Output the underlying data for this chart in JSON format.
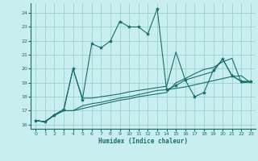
{
  "xlabel": "Humidex (Indice chaleur)",
  "bg_color": "#c8eef0",
  "grid_color": "#90cccc",
  "line_color": "#1a6e6a",
  "xlim": [
    -0.5,
    23.5
  ],
  "ylim": [
    15.7,
    24.7
  ],
  "yticks": [
    16,
    17,
    18,
    19,
    20,
    21,
    22,
    23,
    24
  ],
  "xticks": [
    0,
    1,
    2,
    3,
    4,
    5,
    6,
    7,
    8,
    9,
    10,
    11,
    12,
    13,
    14,
    15,
    16,
    17,
    18,
    19,
    20,
    21,
    22,
    23
  ],
  "line1_x": [
    0,
    1,
    2,
    3,
    4,
    5,
    6,
    7,
    8,
    9,
    10,
    11,
    12,
    13,
    14,
    15,
    16,
    17,
    18,
    19,
    20,
    21,
    22,
    23
  ],
  "line1_y": [
    16.3,
    16.2,
    16.7,
    17.1,
    20.0,
    17.8,
    21.8,
    21.5,
    22.0,
    23.4,
    23.0,
    23.0,
    22.5,
    24.3,
    18.5,
    18.8,
    19.2,
    18.0,
    18.3,
    19.9,
    20.7,
    19.5,
    19.1,
    19.1
  ],
  "line2_x": [
    0,
    1,
    2,
    3,
    4,
    5,
    6,
    7,
    8,
    9,
    10,
    11,
    12,
    13,
    14,
    15,
    16,
    17,
    18,
    19,
    20,
    21,
    22,
    23
  ],
  "line2_y": [
    16.3,
    16.2,
    16.7,
    17.0,
    17.0,
    17.35,
    17.5,
    17.6,
    17.75,
    17.9,
    18.0,
    18.15,
    18.3,
    18.45,
    18.5,
    18.6,
    18.7,
    18.85,
    19.0,
    19.15,
    19.3,
    19.45,
    19.5,
    19.0
  ],
  "line3_x": [
    0,
    1,
    2,
    3,
    4,
    5,
    6,
    7,
    8,
    9,
    10,
    11,
    12,
    13,
    14,
    15,
    16,
    17,
    18,
    19,
    20,
    21,
    22,
    23
  ],
  "line3_y": [
    16.3,
    16.2,
    16.65,
    17.0,
    17.0,
    17.15,
    17.3,
    17.45,
    17.6,
    17.75,
    17.85,
    18.0,
    18.1,
    18.2,
    18.3,
    19.0,
    19.3,
    19.65,
    19.95,
    20.1,
    20.5,
    20.75,
    19.0,
    19.05
  ],
  "line4_x": [
    0,
    1,
    2,
    3,
    4,
    5,
    6,
    7,
    8,
    9,
    10,
    11,
    12,
    13,
    14,
    15,
    16,
    17,
    18,
    19,
    20,
    21,
    22,
    23
  ],
  "line4_y": [
    16.3,
    16.2,
    16.7,
    17.0,
    20.0,
    17.9,
    17.9,
    18.0,
    18.1,
    18.2,
    18.35,
    18.45,
    18.55,
    18.65,
    18.75,
    21.2,
    19.2,
    19.4,
    19.6,
    19.8,
    20.7,
    19.5,
    19.1,
    19.05
  ]
}
